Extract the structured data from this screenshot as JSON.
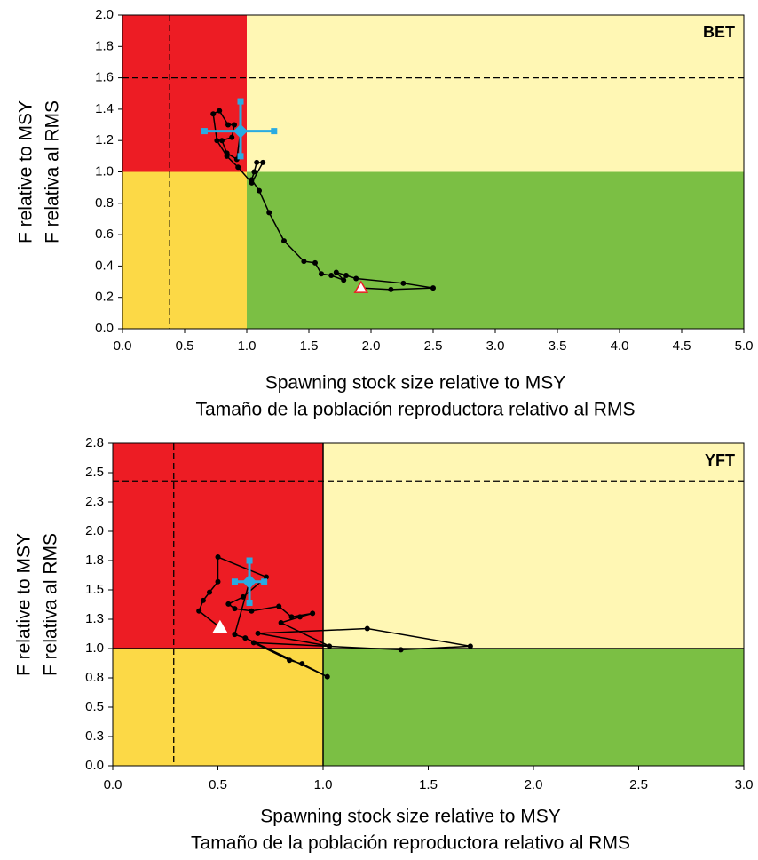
{
  "chart_data": [
    {
      "type": "kobe",
      "tag": "BET",
      "y_label": [
        "F relative to MSY",
        "F relativa al RMS"
      ],
      "x_label": [
        "Spawning stock size relative to MSY",
        "Tamaño de la población reproductora relativo al RMS"
      ],
      "xlim": [
        0,
        5
      ],
      "ylim": [
        0,
        2
      ],
      "xticks": [
        {
          "value": 0,
          "label": "0.0"
        },
        {
          "value": 0.5,
          "label": "0.5"
        },
        {
          "value": 1,
          "label": "1.0"
        },
        {
          "value": 1.5,
          "label": "1.5"
        },
        {
          "value": 2,
          "label": "2.0"
        },
        {
          "value": 2.5,
          "label": "2.5"
        },
        {
          "value": 3,
          "label": "3.0"
        },
        {
          "value": 3.5,
          "label": "3.5"
        },
        {
          "value": 4,
          "label": "4.0"
        },
        {
          "value": 4.5,
          "label": "4.5"
        },
        {
          "value": 5,
          "label": "5.0"
        }
      ],
      "yticks": [
        {
          "value": 0,
          "label": "0.0"
        },
        0.2,
        0.4,
        0.6,
        0.8,
        {
          "value": 1,
          "label": "1.0"
        },
        1.2,
        1.4,
        1.6,
        1.8,
        {
          "value": 2,
          "label": "2.0"
        }
      ],
      "split_x": 1,
      "split_y": 1,
      "limit_x": 0.38,
      "limit_y": 1.6,
      "split_lines": false,
      "colors": {
        "overfished_overfishing": "#ed1c24",
        "overfishing": "#fff7b4",
        "overfished": "#fcd946",
        "healthy": "#7bbf44"
      },
      "color": "#000000",
      "start_fill": "#ffffff",
      "start_stroke": "#ed1c24",
      "x": [
        1.92,
        2.16,
        2.5,
        2.26,
        1.88,
        1.8,
        1.72,
        1.78,
        1.68,
        1.6,
        1.55,
        1.46,
        1.3,
        1.18,
        1.1,
        1.04,
        1.06,
        1.08,
        1.13,
        1.04,
        0.93,
        0.84,
        0.76,
        0.73,
        0.78,
        0.85,
        0.9,
        0.88,
        0.8,
        0.84,
        0.92,
        0.95
      ],
      "values": [
        0.26,
        0.25,
        0.26,
        0.29,
        0.32,
        0.34,
        0.36,
        0.31,
        0.34,
        0.35,
        0.42,
        0.43,
        0.56,
        0.74,
        0.88,
        0.95,
        1.0,
        1.06,
        1.06,
        0.93,
        1.03,
        1.1,
        1.2,
        1.37,
        1.39,
        1.3,
        1.3,
        1.22,
        1.2,
        1.12,
        1.08,
        1.26
      ],
      "current": {
        "x": 0.95,
        "y": 1.26,
        "x_error": [
          0.66,
          1.22
        ],
        "y_error": [
          1.1,
          1.45
        ],
        "color": "#29abe2"
      }
    },
    {
      "type": "kobe",
      "tag": "YFT",
      "y_label": [
        "F relative to MSY",
        "F relativa al RMS"
      ],
      "x_label": [
        "Spawning stock size relative to MSY",
        "Tamaño de la población reproductora relativo al RMS"
      ],
      "xlim": [
        0,
        3
      ],
      "ylim": [
        0,
        2.75
      ],
      "xticks": [
        {
          "value": 0,
          "label": "0.0"
        },
        0.5,
        {
          "value": 1,
          "label": "1.0"
        },
        1.5,
        {
          "value": 2,
          "label": "2.0"
        },
        2.5,
        {
          "value": 3,
          "label": "3.0"
        }
      ],
      "yticks": [
        {
          "value": 0,
          "label": "0.0"
        },
        {
          "value": 0.25,
          "label": "0.3"
        },
        0.5,
        {
          "value": 0.75,
          "label": "0.8"
        },
        {
          "value": 1,
          "label": "1.0"
        },
        {
          "value": 1.25,
          "label": "1.3"
        },
        1.5,
        {
          "value": 1.75,
          "label": "1.8"
        },
        {
          "value": 2,
          "label": "2.0"
        },
        {
          "value": 2.25,
          "label": "2.3"
        },
        2.5,
        {
          "value": 2.75,
          "label": "2.8"
        }
      ],
      "split_x": 1,
      "split_y": 1,
      "limit_x": 0.29,
      "limit_y": 2.43,
      "split_lines": true,
      "colors": {
        "overfished_overfishing": "#ed1c24",
        "overfishing": "#fff7b4",
        "overfished": "#fcd946",
        "healthy": "#7bbf44"
      },
      "color": "#000000",
      "start_fill": "#ffffff",
      "start_stroke": "#ffffff",
      "x": [
        0.51,
        0.41,
        0.43,
        0.46,
        0.5,
        0.5,
        0.73,
        0.62,
        0.55,
        0.58,
        0.66,
        0.79,
        0.85,
        0.95,
        0.89,
        0.8,
        1.03,
        0.69,
        1.21,
        1.7,
        1.37,
        0.67,
        0.84,
        0.9,
        1.02,
        0.63,
        0.58,
        0.65
      ],
      "values": [
        1.18,
        1.32,
        1.41,
        1.48,
        1.57,
        1.78,
        1.61,
        1.44,
        1.38,
        1.34,
        1.32,
        1.36,
        1.27,
        1.3,
        1.27,
        1.22,
        1.02,
        1.13,
        1.17,
        1.02,
        0.99,
        1.05,
        0.9,
        0.87,
        0.76,
        1.09,
        1.12,
        1.57
      ],
      "current": {
        "x": 0.65,
        "y": 1.57,
        "x_error": [
          0.58,
          0.72
        ],
        "y_error": [
          1.39,
          1.75
        ],
        "color": "#29abe2"
      }
    }
  ]
}
